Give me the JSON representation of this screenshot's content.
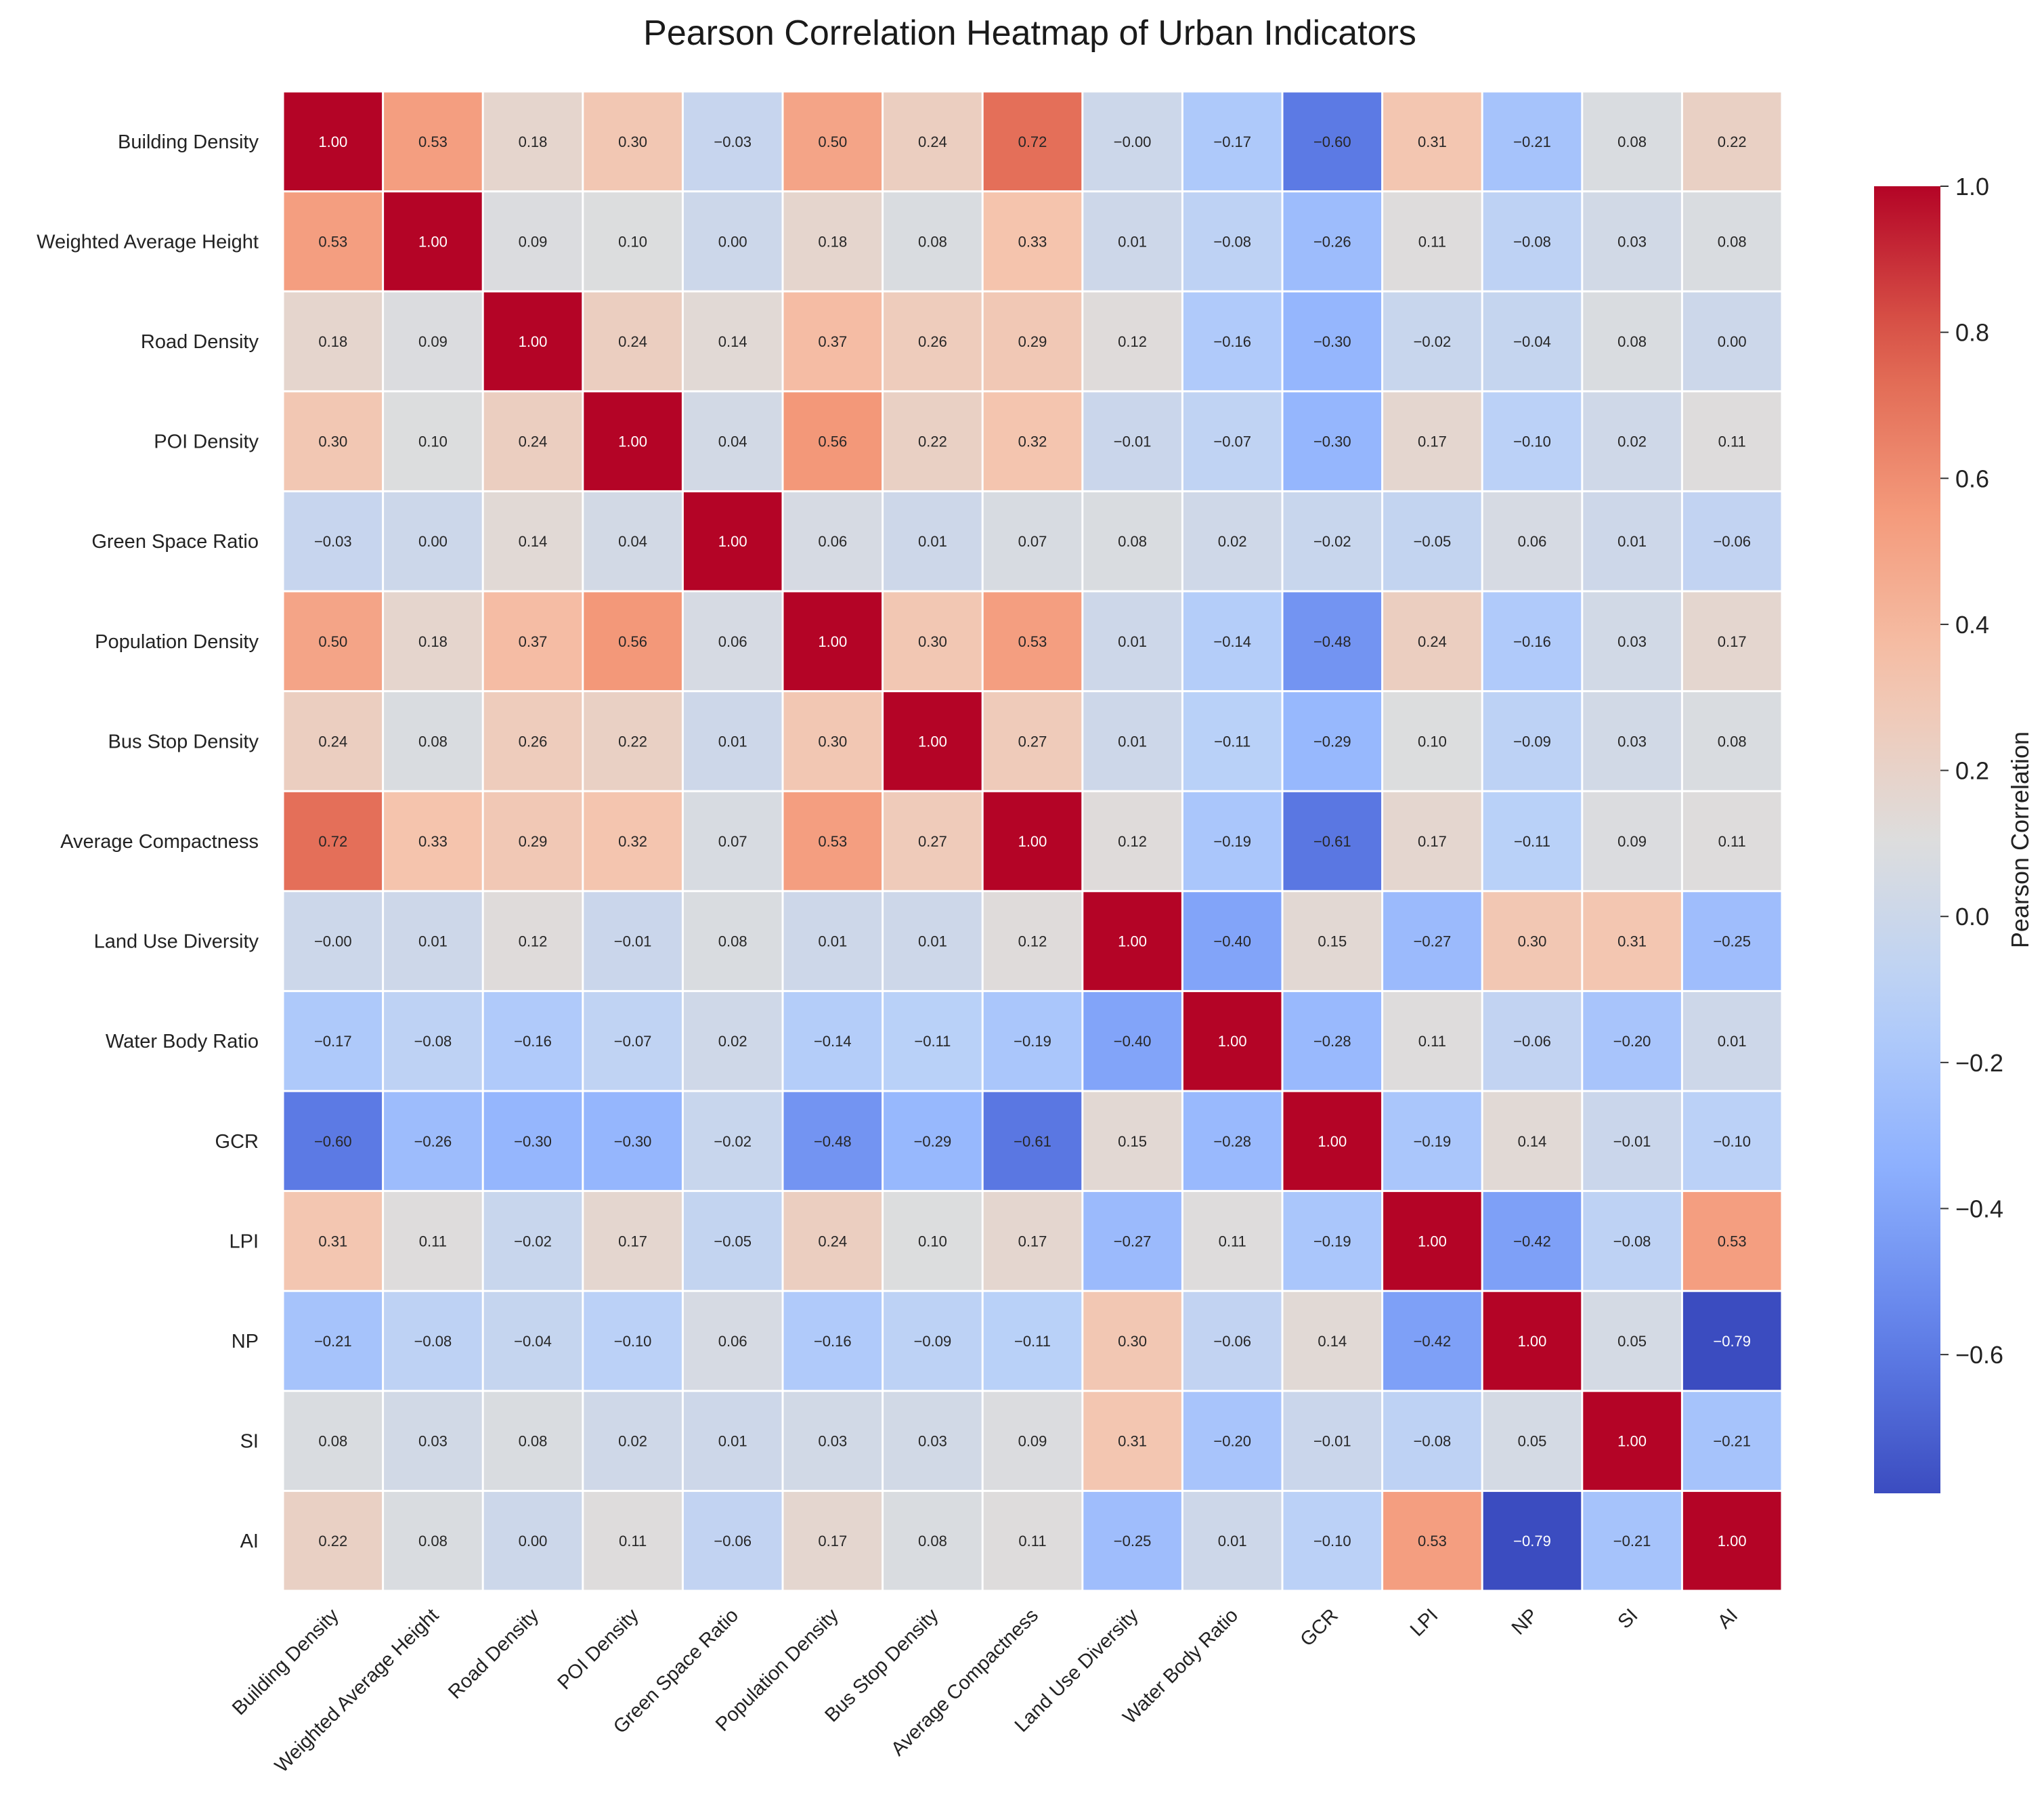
{
  "chart_data": {
    "type": "heatmap",
    "title": "Pearson Correlation Heatmap of Urban Indicators",
    "labels": [
      "Building Density",
      "Weighted Average Height",
      "Road Density",
      "POI Density",
      "Green Space Ratio",
      "Population Density",
      "Bus Stop Density",
      "Average Compactness",
      "Land Use Diversity",
      "Water Body Ratio",
      "GCR",
      "LPI",
      "NP",
      "SI",
      "AI"
    ],
    "matrix": [
      [
        1.0,
        0.53,
        0.18,
        0.3,
        -0.03,
        0.5,
        0.24,
        0.72,
        -0.0,
        -0.17,
        -0.6,
        0.31,
        -0.21,
        0.08,
        0.22
      ],
      [
        0.53,
        1.0,
        0.09,
        0.1,
        0.0,
        0.18,
        0.08,
        0.33,
        0.01,
        -0.08,
        -0.26,
        0.11,
        -0.08,
        0.03,
        0.08
      ],
      [
        0.18,
        0.09,
        1.0,
        0.24,
        0.14,
        0.37,
        0.26,
        0.29,
        0.12,
        -0.16,
        -0.3,
        -0.02,
        -0.04,
        0.08,
        0.0
      ],
      [
        0.3,
        0.1,
        0.24,
        1.0,
        0.04,
        0.56,
        0.22,
        0.32,
        -0.01,
        -0.07,
        -0.3,
        0.17,
        -0.1,
        0.02,
        0.11
      ],
      [
        -0.03,
        0.0,
        0.14,
        0.04,
        1.0,
        0.06,
        0.01,
        0.07,
        0.08,
        0.02,
        -0.02,
        -0.05,
        0.06,
        0.01,
        -0.06
      ],
      [
        0.5,
        0.18,
        0.37,
        0.56,
        0.06,
        1.0,
        0.3,
        0.53,
        0.01,
        -0.14,
        -0.48,
        0.24,
        -0.16,
        0.03,
        0.17
      ],
      [
        0.24,
        0.08,
        0.26,
        0.22,
        0.01,
        0.3,
        1.0,
        0.27,
        0.01,
        -0.11,
        -0.29,
        0.1,
        -0.09,
        0.03,
        0.08
      ],
      [
        0.72,
        0.33,
        0.29,
        0.32,
        0.07,
        0.53,
        0.27,
        1.0,
        0.12,
        -0.19,
        -0.61,
        0.17,
        -0.11,
        0.09,
        0.11
      ],
      [
        -0.0,
        0.01,
        0.12,
        -0.01,
        0.08,
        0.01,
        0.01,
        0.12,
        1.0,
        -0.4,
        0.15,
        -0.27,
        0.3,
        0.31,
        -0.25
      ],
      [
        -0.17,
        -0.08,
        -0.16,
        -0.07,
        0.02,
        -0.14,
        -0.11,
        -0.19,
        -0.4,
        1.0,
        -0.28,
        0.11,
        -0.06,
        -0.2,
        0.01
      ],
      [
        -0.6,
        -0.26,
        -0.3,
        -0.3,
        -0.02,
        -0.48,
        -0.29,
        -0.61,
        0.15,
        -0.28,
        1.0,
        -0.19,
        0.14,
        -0.01,
        -0.1
      ],
      [
        0.31,
        0.11,
        -0.02,
        0.17,
        -0.05,
        0.24,
        0.1,
        0.17,
        -0.27,
        0.11,
        -0.19,
        1.0,
        -0.42,
        -0.08,
        0.53
      ],
      [
        -0.21,
        -0.08,
        -0.04,
        -0.1,
        0.06,
        -0.16,
        -0.09,
        -0.11,
        0.3,
        -0.06,
        0.14,
        -0.42,
        1.0,
        0.05,
        -0.79
      ],
      [
        0.08,
        0.03,
        0.08,
        0.02,
        0.01,
        0.03,
        0.03,
        0.09,
        0.31,
        -0.2,
        -0.01,
        -0.08,
        0.05,
        1.0,
        -0.21
      ],
      [
        0.22,
        0.08,
        0.0,
        0.11,
        -0.06,
        0.17,
        0.08,
        0.11,
        -0.25,
        0.01,
        -0.1,
        0.53,
        -0.79,
        -0.21,
        1.0
      ]
    ],
    "colormap": "coolwarm",
    "vmin": -0.79,
    "vmax": 1.0,
    "colorbar": {
      "label": "Pearson Correlation",
      "ticks": [
        1.0,
        0.8,
        0.6,
        0.4,
        0.2,
        0.0,
        -0.2,
        -0.4,
        -0.6
      ],
      "tick_labels": [
        "1.0",
        "0.8",
        "0.6",
        "0.4",
        "0.2",
        "0.0",
        "−0.2",
        "−0.4",
        "−0.6"
      ]
    },
    "cell_borders": "white",
    "grid": false,
    "legend_position": "right"
  }
}
